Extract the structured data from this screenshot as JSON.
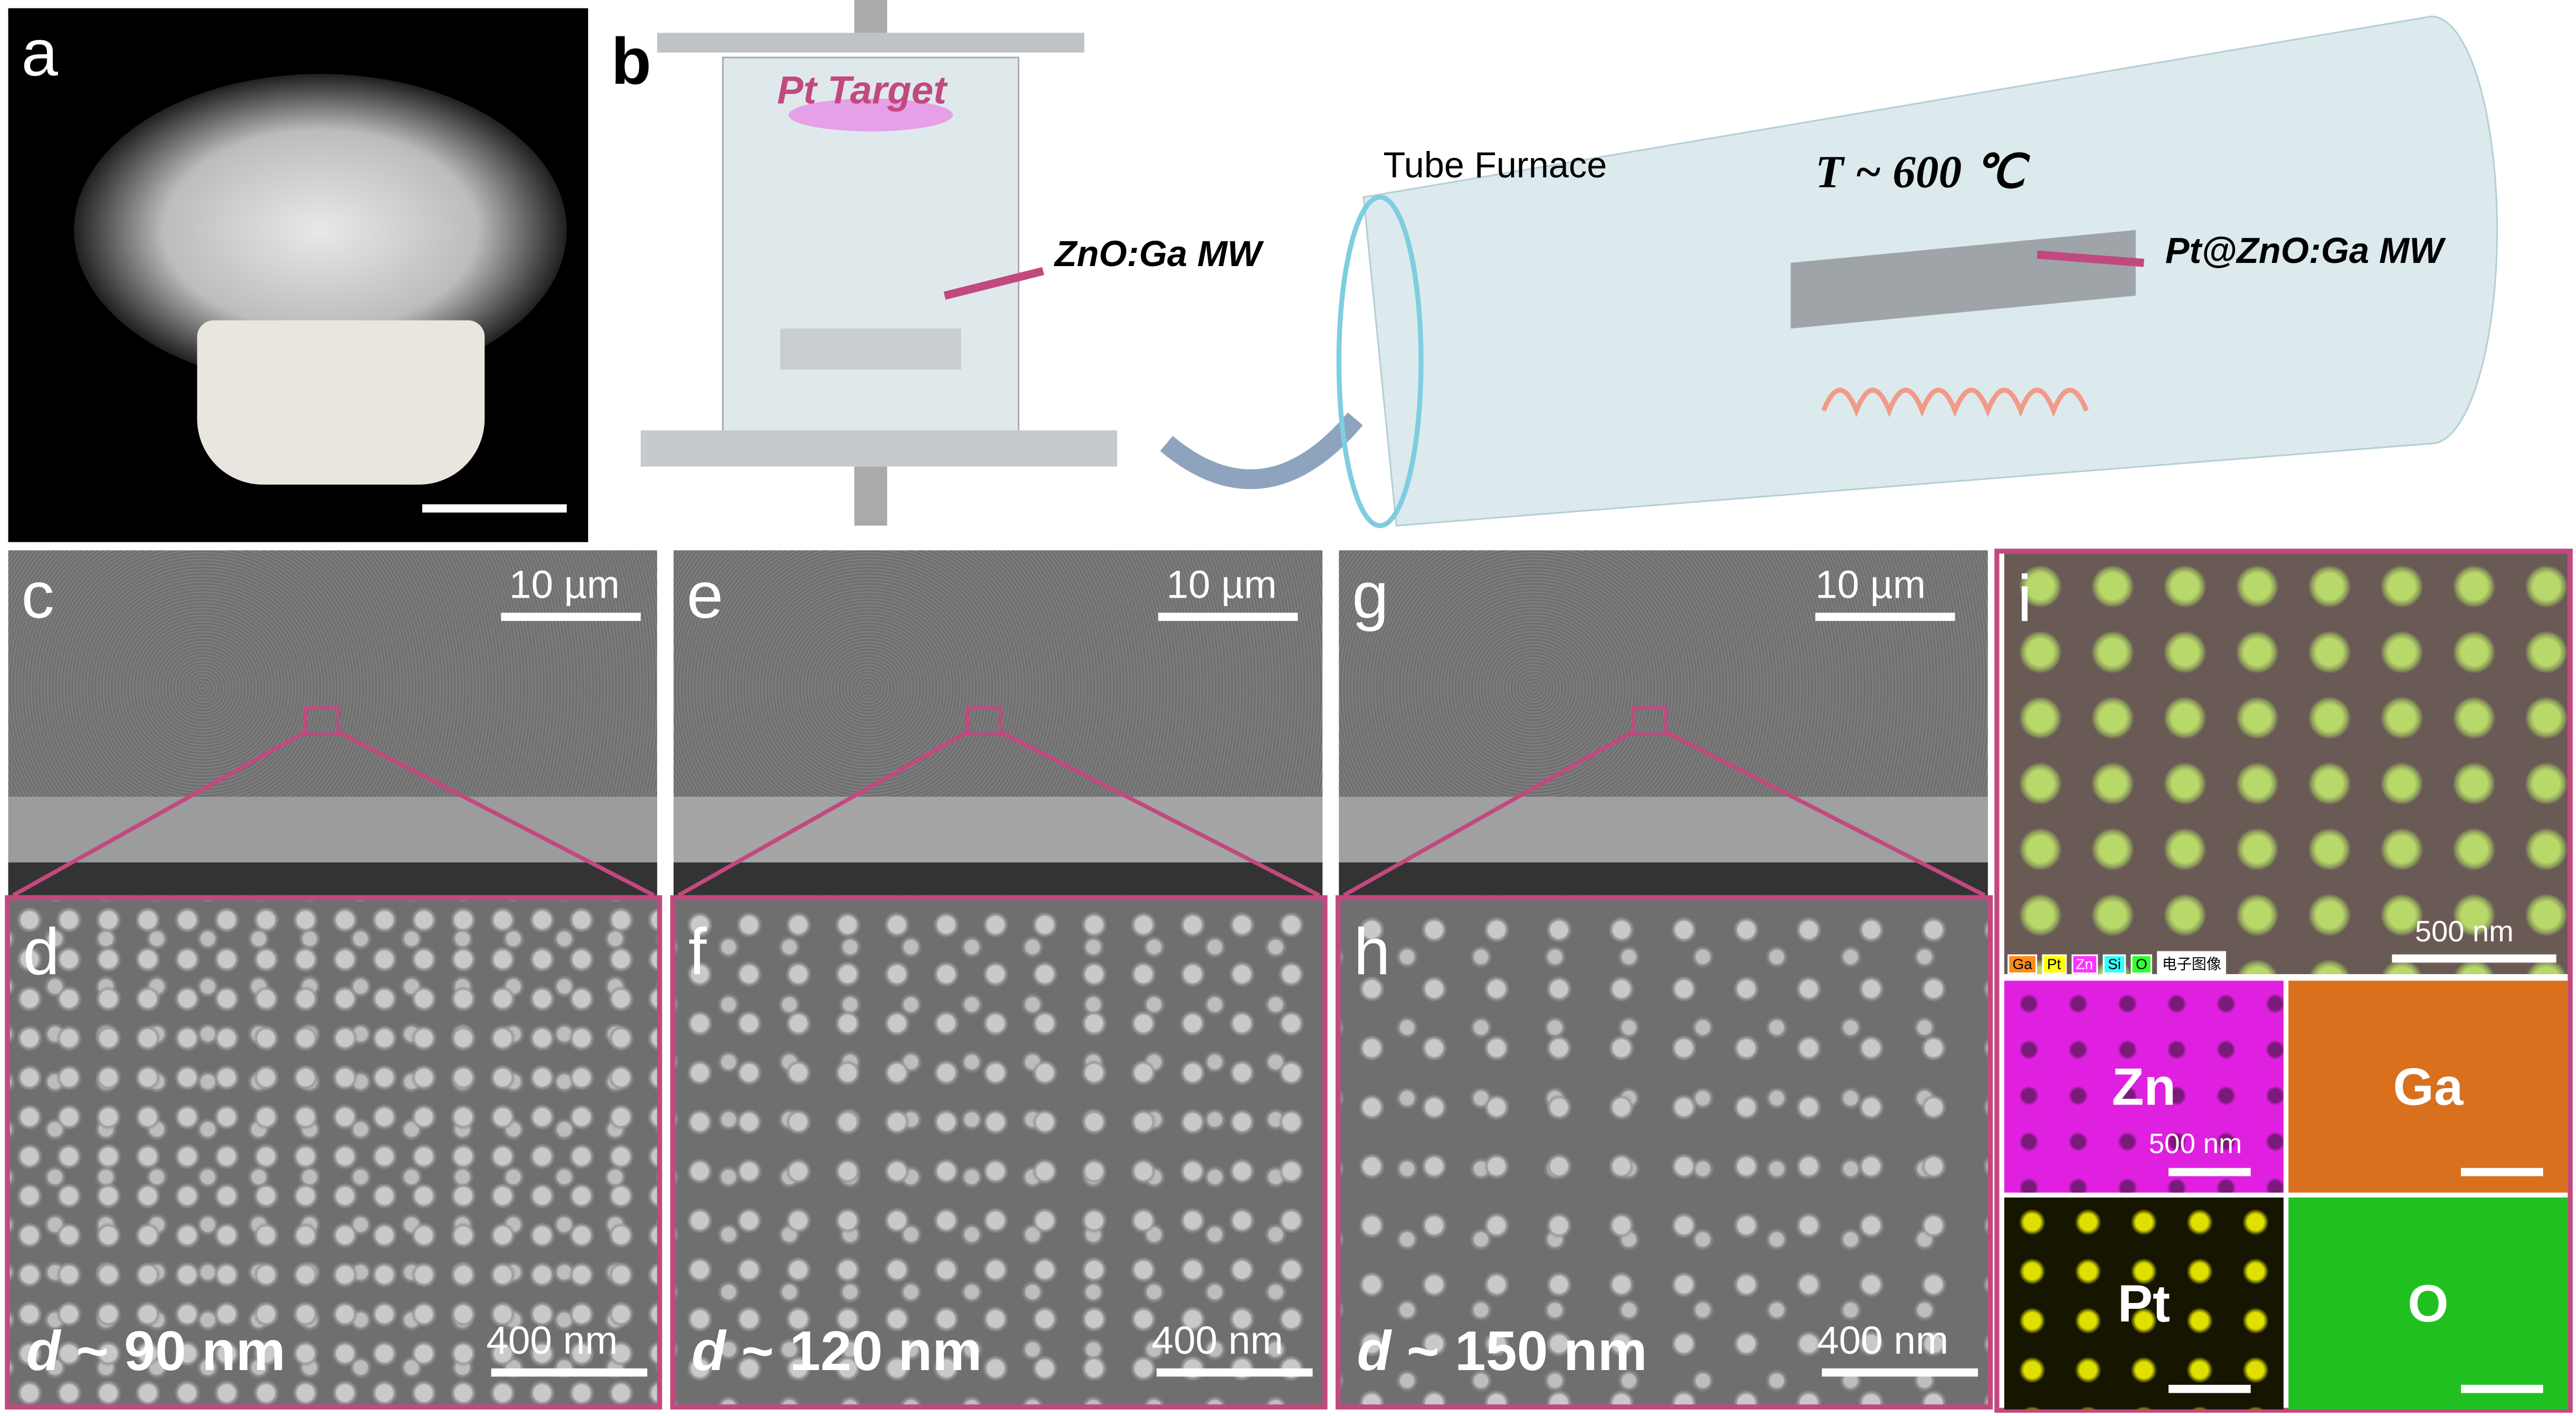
{
  "panels": {
    "a": {
      "label": "a"
    },
    "b": {
      "label": "b",
      "pt_target": "Pt Target",
      "mw": "ZnO:Ga MW",
      "furnace": "Tube Furnace",
      "temperature": "T ~ 600 ℃",
      "product": "Pt@ZnO:Ga MW"
    },
    "c": {
      "label": "c",
      "scale": "10 µm"
    },
    "e": {
      "label": "e",
      "scale": "10 µm"
    },
    "g": {
      "label": "g",
      "scale": "10 µm"
    },
    "d": {
      "label": "d",
      "d_symbol": "d",
      "size": " ~ 90 nm",
      "scale": "400 nm"
    },
    "f": {
      "label": "f",
      "d_symbol": "d",
      "size": " ~ 120 nm",
      "scale": "400 nm"
    },
    "h": {
      "label": "h",
      "d_symbol": "d",
      "size": " ~ 150 nm",
      "scale": "400 nm"
    },
    "i": {
      "label": "i",
      "scale": "500 nm",
      "legend": [
        {
          "t": "Ga",
          "c": "#ff8c1a"
        },
        {
          "t": "Pt",
          "c": "#ffff00"
        },
        {
          "t": "Zn",
          "c": "#ff33ff"
        },
        {
          "t": "Si",
          "c": "#33ffff"
        },
        {
          "t": "O",
          "c": "#33ff33"
        },
        {
          "t": "电子图像",
          "c": "#ffffff"
        }
      ],
      "maps": [
        {
          "el": "Zn",
          "scale": "500 nm"
        },
        {
          "el": "Ga"
        },
        {
          "el": "Pt"
        },
        {
          "el": "O"
        }
      ]
    }
  },
  "colors": {
    "accent": "#c2497f",
    "zn": "#e020e0",
    "ga": "#d9701e",
    "pt": "#e0e000",
    "o": "#20c020"
  }
}
